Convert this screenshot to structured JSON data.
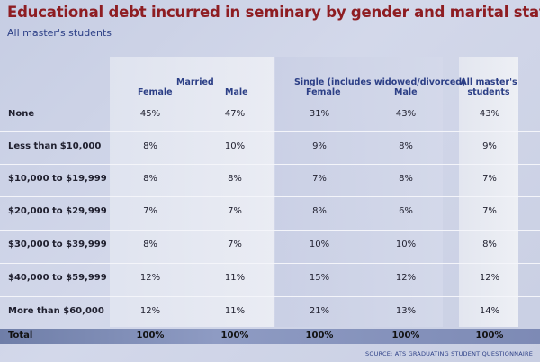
{
  "title": "Educational debt incurred in seminary by gender and marital status",
  "subtitle": "All master's students",
  "headers": {
    "married_group": "Married",
    "single_group": "Single (includes widowed/divorced)",
    "female": "Female",
    "male": "Male",
    "all_line1": "All master's",
    "all_line2": "students"
  },
  "rows": [
    {
      "label": "None",
      "values": [
        "45%",
        "47%",
        "31%",
        "43%",
        "43%"
      ]
    },
    {
      "label": "Less than $10,000",
      "values": [
        "8%",
        "10%",
        "9%",
        "8%",
        "9%"
      ]
    },
    {
      "label": "$10,000 to $19,999",
      "values": [
        "8%",
        "8%",
        "7%",
        "8%",
        "7%"
      ]
    },
    {
      "label": "$20,000 to $29,999",
      "values": [
        "7%",
        "7%",
        "8%",
        "6%",
        "7%"
      ]
    },
    {
      "label": "$30,000 to $39,999",
      "values": [
        "8%",
        "7%",
        "10%",
        "10%",
        "8%"
      ]
    },
    {
      "label": "$40,000 to $59,999",
      "values": [
        "12%",
        "11%",
        "15%",
        "12%",
        "12%"
      ]
    },
    {
      "label": "More than $60,000",
      "values": [
        "12%",
        "11%",
        "21%",
        "13%",
        "14%"
      ]
    }
  ],
  "total": {
    "label": "Total",
    "values": [
      "100%",
      "100%",
      "100%",
      "100%",
      "100%"
    ]
  },
  "source": "SOURCE: ATS GRADUATING STUDENT QUESTIONNAIRE",
  "colors": {
    "title": "#8e1d22",
    "header_text": "#2c3f86",
    "background": "#c9cfe3",
    "total_bar": "#7d8ab5"
  }
}
